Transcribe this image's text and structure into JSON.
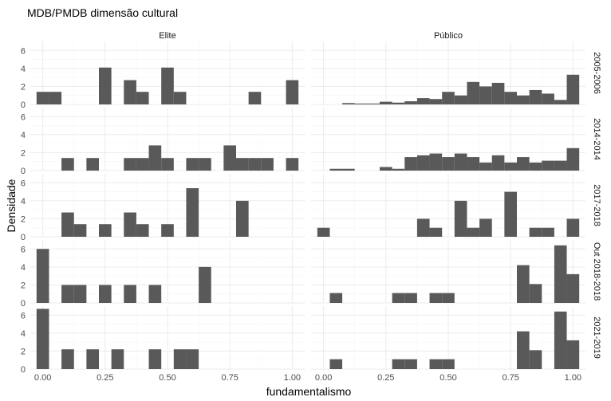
{
  "chart_data": {
    "type": "bar",
    "title": "MDB/PMDB dimensão cultural",
    "xlabel": "fundamentalismo",
    "ylabel": "Densidade",
    "xlim": [
      -0.05,
      1.05
    ],
    "ylim": [
      0,
      7
    ],
    "bin_width": 0.05,
    "x_ticks": [
      "0.00",
      "0.25",
      "0.50",
      "0.75",
      "1.00"
    ],
    "x_tick_values": [
      0,
      0.25,
      0.5,
      0.75,
      1
    ],
    "y_ticks": [
      "0",
      "2",
      "4",
      "6"
    ],
    "y_tick_values": [
      0,
      2,
      4,
      6
    ],
    "columns": [
      "Elite",
      "Público"
    ],
    "rows": [
      "2005-2006",
      "2014-2014",
      "2017-2018",
      "Out 2018-2018",
      "2021-2019"
    ],
    "panels": [
      {
        "row": "2005-2006",
        "col": "Elite",
        "bars": [
          {
            "x": 0.0,
            "y": 1.4
          },
          {
            "x": 0.05,
            "y": 1.4
          },
          {
            "x": 0.25,
            "y": 4.1
          },
          {
            "x": 0.35,
            "y": 2.7
          },
          {
            "x": 0.4,
            "y": 1.4
          },
          {
            "x": 0.5,
            "y": 4.1
          },
          {
            "x": 0.55,
            "y": 1.4
          },
          {
            "x": 0.85,
            "y": 1.4
          },
          {
            "x": 1.0,
            "y": 2.7
          }
        ]
      },
      {
        "row": "2005-2006",
        "col": "Público",
        "bars": [
          {
            "x": 0.1,
            "y": 0.15
          },
          {
            "x": 0.15,
            "y": 0.1
          },
          {
            "x": 0.2,
            "y": 0.1
          },
          {
            "x": 0.25,
            "y": 0.3
          },
          {
            "x": 0.3,
            "y": 0.2
          },
          {
            "x": 0.35,
            "y": 0.35
          },
          {
            "x": 0.4,
            "y": 0.7
          },
          {
            "x": 0.45,
            "y": 0.6
          },
          {
            "x": 0.5,
            "y": 1.4
          },
          {
            "x": 0.55,
            "y": 1.0
          },
          {
            "x": 0.6,
            "y": 2.5
          },
          {
            "x": 0.65,
            "y": 2.0
          },
          {
            "x": 0.7,
            "y": 2.4
          },
          {
            "x": 0.75,
            "y": 1.4
          },
          {
            "x": 0.8,
            "y": 1.0
          },
          {
            "x": 0.85,
            "y": 1.6
          },
          {
            "x": 0.9,
            "y": 1.2
          },
          {
            "x": 0.95,
            "y": 0.5
          },
          {
            "x": 1.0,
            "y": 3.3
          }
        ]
      },
      {
        "row": "2014-2014",
        "col": "Elite",
        "bars": [
          {
            "x": 0.1,
            "y": 1.4
          },
          {
            "x": 0.2,
            "y": 1.4
          },
          {
            "x": 0.35,
            "y": 1.4
          },
          {
            "x": 0.4,
            "y": 1.4
          },
          {
            "x": 0.45,
            "y": 2.8
          },
          {
            "x": 0.5,
            "y": 1.4
          },
          {
            "x": 0.6,
            "y": 1.4
          },
          {
            "x": 0.65,
            "y": 1.4
          },
          {
            "x": 0.75,
            "y": 2.8
          },
          {
            "x": 0.8,
            "y": 1.4
          },
          {
            "x": 0.85,
            "y": 1.4
          },
          {
            "x": 0.9,
            "y": 1.4
          },
          {
            "x": 1.0,
            "y": 1.4
          }
        ]
      },
      {
        "row": "2014-2014",
        "col": "Público",
        "bars": [
          {
            "x": 0.05,
            "y": 0.2
          },
          {
            "x": 0.1,
            "y": 0.2
          },
          {
            "x": 0.25,
            "y": 0.4
          },
          {
            "x": 0.3,
            "y": 0.2
          },
          {
            "x": 0.35,
            "y": 1.5
          },
          {
            "x": 0.4,
            "y": 1.7
          },
          {
            "x": 0.45,
            "y": 1.9
          },
          {
            "x": 0.5,
            "y": 1.5
          },
          {
            "x": 0.55,
            "y": 1.9
          },
          {
            "x": 0.6,
            "y": 1.5
          },
          {
            "x": 0.65,
            "y": 0.9
          },
          {
            "x": 0.7,
            "y": 1.7
          },
          {
            "x": 0.75,
            "y": 0.9
          },
          {
            "x": 0.8,
            "y": 1.5
          },
          {
            "x": 0.85,
            "y": 0.9
          },
          {
            "x": 0.9,
            "y": 1.1
          },
          {
            "x": 0.95,
            "y": 1.1
          },
          {
            "x": 1.0,
            "y": 2.5
          }
        ]
      },
      {
        "row": "2017-2018",
        "col": "Elite",
        "bars": [
          {
            "x": 0.1,
            "y": 2.7
          },
          {
            "x": 0.15,
            "y": 1.4
          },
          {
            "x": 0.25,
            "y": 1.4
          },
          {
            "x": 0.35,
            "y": 2.7
          },
          {
            "x": 0.4,
            "y": 1.4
          },
          {
            "x": 0.5,
            "y": 1.4
          },
          {
            "x": 0.6,
            "y": 5.4
          },
          {
            "x": 0.8,
            "y": 4.0
          }
        ]
      },
      {
        "row": "2017-2018",
        "col": "Público",
        "bars": [
          {
            "x": 0.0,
            "y": 1.0
          },
          {
            "x": 0.4,
            "y": 2.0
          },
          {
            "x": 0.45,
            "y": 1.0
          },
          {
            "x": 0.55,
            "y": 4.0
          },
          {
            "x": 0.6,
            "y": 1.0
          },
          {
            "x": 0.65,
            "y": 2.0
          },
          {
            "x": 0.75,
            "y": 5.0
          },
          {
            "x": 0.85,
            "y": 1.0
          },
          {
            "x": 0.9,
            "y": 1.0
          },
          {
            "x": 1.0,
            "y": 2.0
          }
        ]
      },
      {
        "row": "Out 2018-2018",
        "col": "Elite",
        "bars": [
          {
            "x": 0.0,
            "y": 6.0
          },
          {
            "x": 0.1,
            "y": 2.0
          },
          {
            "x": 0.15,
            "y": 2.0
          },
          {
            "x": 0.25,
            "y": 2.0
          },
          {
            "x": 0.35,
            "y": 2.0
          },
          {
            "x": 0.45,
            "y": 2.0
          },
          {
            "x": 0.65,
            "y": 4.0
          }
        ]
      },
      {
        "row": "Out 2018-2018",
        "col": "Público",
        "bars": [
          {
            "x": 0.05,
            "y": 1.1
          },
          {
            "x": 0.3,
            "y": 1.1
          },
          {
            "x": 0.35,
            "y": 1.1
          },
          {
            "x": 0.45,
            "y": 1.1
          },
          {
            "x": 0.5,
            "y": 1.1
          },
          {
            "x": 0.8,
            "y": 4.2
          },
          {
            "x": 0.85,
            "y": 2.1
          },
          {
            "x": 0.95,
            "y": 6.4
          },
          {
            "x": 1.0,
            "y": 3.2
          }
        ]
      },
      {
        "row": "2021-2019",
        "col": "Elite",
        "bars": [
          {
            "x": 0.0,
            "y": 6.7
          },
          {
            "x": 0.1,
            "y": 2.2
          },
          {
            "x": 0.2,
            "y": 2.2
          },
          {
            "x": 0.3,
            "y": 2.2
          },
          {
            "x": 0.45,
            "y": 2.2
          },
          {
            "x": 0.55,
            "y": 2.2
          },
          {
            "x": 0.6,
            "y": 2.2
          }
        ]
      },
      {
        "row": "2021-2019",
        "col": "Público",
        "bars": [
          {
            "x": 0.05,
            "y": 1.1
          },
          {
            "x": 0.3,
            "y": 1.1
          },
          {
            "x": 0.35,
            "y": 1.1
          },
          {
            "x": 0.45,
            "y": 1.1
          },
          {
            "x": 0.5,
            "y": 1.1
          },
          {
            "x": 0.8,
            "y": 4.2
          },
          {
            "x": 0.85,
            "y": 2.1
          },
          {
            "x": 0.95,
            "y": 6.4
          },
          {
            "x": 1.0,
            "y": 3.2
          }
        ]
      }
    ],
    "grid": true,
    "colors": {
      "bar": "#595959",
      "panel": "#ffffff",
      "grid_major": "#ebebeb",
      "grid_minor": "#f5f5f5"
    }
  }
}
